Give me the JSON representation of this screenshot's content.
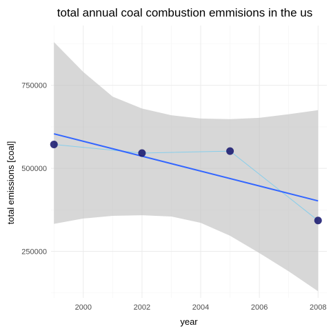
{
  "chart_data": {
    "type": "line",
    "title": "total annual coal combustion emmisions in the us",
    "xlabel": "year",
    "ylabel": "total emissions [coal]",
    "xlim": [
      1998.9,
      2008.3
    ],
    "ylim": [
      110000,
      930000
    ],
    "x_ticks": [
      2000,
      2002,
      2004,
      2006,
      2008
    ],
    "y_ticks": [
      250000,
      500000,
      750000
    ],
    "x_tick_labels": [
      "2000",
      "2002",
      "2004",
      "2006",
      "2008"
    ],
    "y_tick_labels": [
      "250000",
      "500000",
      "750000"
    ],
    "grid": true,
    "series": [
      {
        "type": "line+points",
        "x": [
          1999,
          2002,
          2005,
          2008
        ],
        "values": [
          572000,
          546000,
          552000,
          343000
        ],
        "line_color": "#87ceeb",
        "point_color": "#191970"
      }
    ],
    "smooth": {
      "method": "linear",
      "color": "#3366ff",
      "band_color": "#bfbfbf",
      "x": [
        1999,
        2008
      ],
      "values": [
        604000,
        402000
      ],
      "band_lower": [
        [
          1999,
          333000
        ],
        [
          2000,
          349000
        ],
        [
          2001,
          357000
        ],
        [
          2002,
          359000
        ],
        [
          2003,
          355000
        ],
        [
          2004,
          336000
        ],
        [
          2005,
          297000
        ],
        [
          2006,
          245000
        ],
        [
          2007,
          190000
        ],
        [
          2008,
          130000
        ]
      ],
      "band_upper": [
        [
          1999,
          880000
        ],
        [
          2000,
          790000
        ],
        [
          2001,
          716000
        ],
        [
          2002,
          680000
        ],
        [
          2003,
          660000
        ],
        [
          2004,
          650000
        ],
        [
          2005,
          648000
        ],
        [
          2006,
          652000
        ],
        [
          2007,
          663000
        ],
        [
          2008,
          675000
        ]
      ]
    }
  }
}
